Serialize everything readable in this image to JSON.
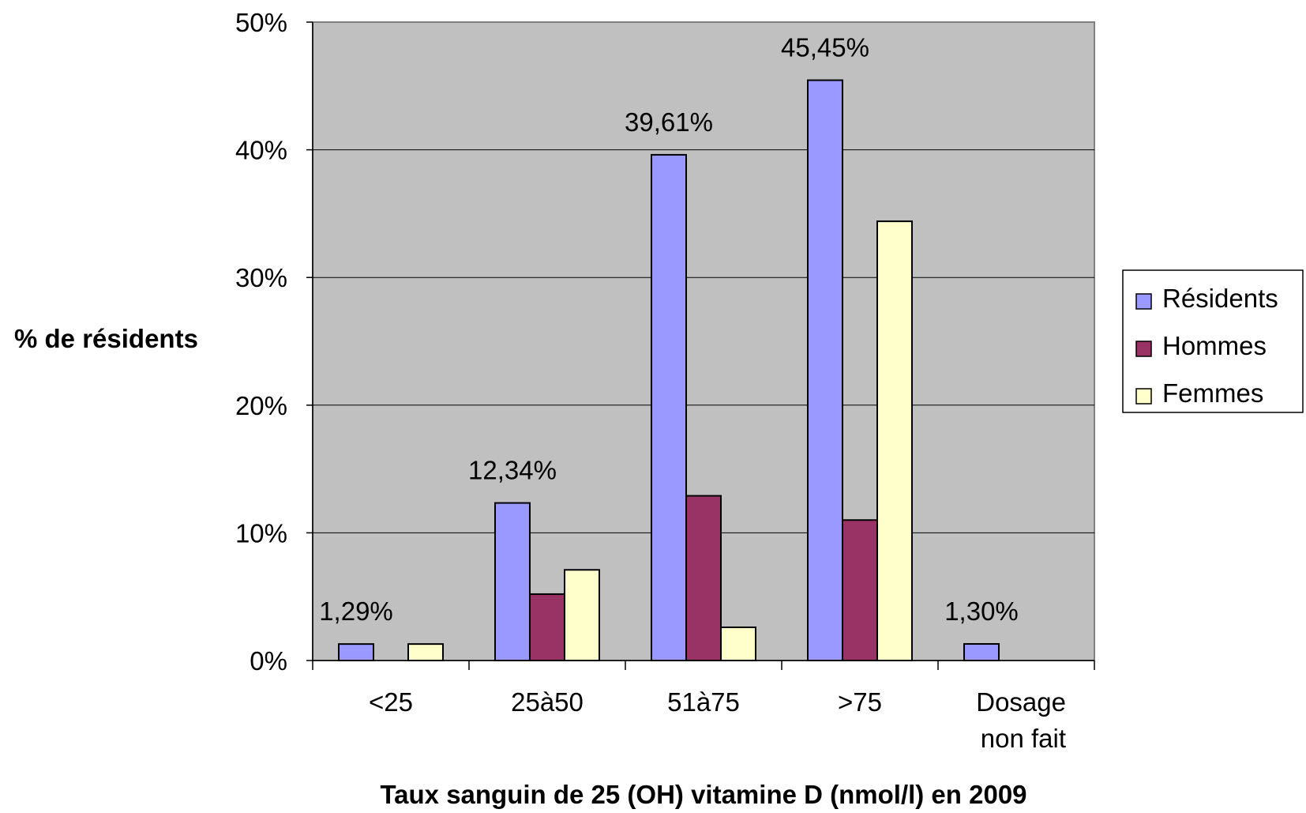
{
  "chart_data": {
    "type": "bar",
    "categories": [
      "<25",
      "25à50",
      "51à75",
      ">75",
      "Dosage non fait"
    ],
    "category_lines": [
      [
        "<25"
      ],
      [
        "25à50"
      ],
      [
        "51à75"
      ],
      [
        ">75"
      ],
      [
        "Dosage",
        "non fait"
      ]
    ],
    "series": [
      {
        "name": "Résidents",
        "color": "#9999ff",
        "values": [
          1.29,
          12.34,
          39.61,
          45.45,
          1.3
        ]
      },
      {
        "name": "Hommes",
        "color": "#993366",
        "values": [
          0,
          5.2,
          12.9,
          11.0,
          0
        ]
      },
      {
        "name": "Femmes",
        "color": "#ffffcc",
        "values": [
          1.29,
          7.1,
          2.6,
          34.4,
          0
        ]
      }
    ],
    "data_labels": [
      "1,29%",
      "12,34%",
      "39,61%",
      "45,45%",
      "1,30%"
    ],
    "ylabel": "% de résidents",
    "xlabel": "Taux sanguin de 25 (OH) vitamine D (nmol/l) en 2009",
    "ylim": [
      0,
      50
    ],
    "yticks": [
      "0%",
      "10%",
      "20%",
      "30%",
      "40%",
      "50%"
    ],
    "grid": true,
    "plot_background": "#c0c0c0",
    "legend_position": "right"
  }
}
